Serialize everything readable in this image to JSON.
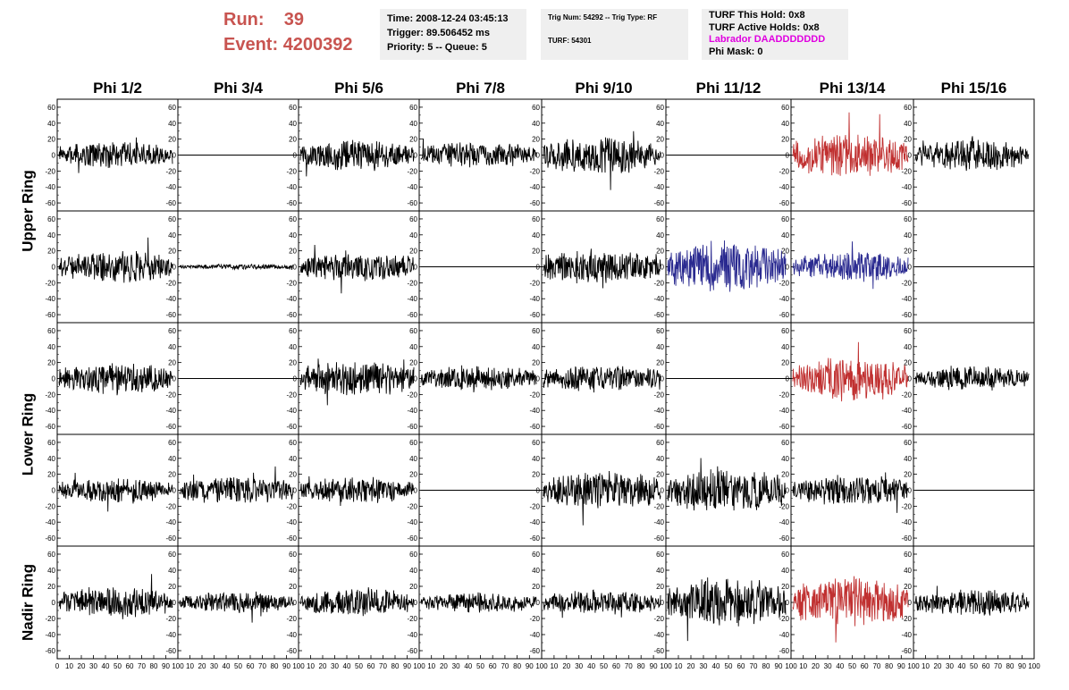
{
  "header": {
    "run_label": "Run:",
    "run_value": "39",
    "event_label": "Event:",
    "event_value": "4200392",
    "time": "Time: 2008-12-24 03:45:13",
    "trigger": "Trigger: 89.506452 ms",
    "priority": "Priority: 5 -- Queue: 5",
    "trig_num": "Trig Num: 54292 -- Trig Type: RF",
    "turf": "TURF: 54301",
    "turf_hold": "TURF This Hold: 0x8",
    "turf_active": "TURF Active Holds: 0x8",
    "labrador": "Labrador DAADDDDDDD",
    "phi_mask": "Phi Mask: 0"
  },
  "colors": {
    "run_text": "#c85450",
    "labrador_text": "#e000e0",
    "trace_default": "#000000",
    "trace_red": "#c03030",
    "trace_blue": "#2a2a90",
    "info_bg": "#efefef"
  },
  "phi_labels": [
    "Phi 1/2",
    "Phi 3/4",
    "Phi 5/6",
    "Phi 7/8",
    "Phi 9/10",
    "Phi 11/12",
    "Phi 13/14",
    "Phi 15/16"
  ],
  "ring_labels": [
    "Upper Ring",
    "Lower Ring",
    "Nadir Ring"
  ],
  "axis": {
    "y_ticks": [
      -60,
      -40,
      -20,
      0,
      20,
      40,
      60
    ],
    "y_range": [
      -70,
      70
    ],
    "x_ticks": [
      0,
      10,
      20,
      30,
      40,
      50,
      60,
      70,
      80,
      90,
      100
    ],
    "x_range": [
      0,
      100
    ]
  },
  "chart_data": {
    "type": "line",
    "x_range": [
      0,
      100
    ],
    "y_range": [
      -70,
      70
    ],
    "rows": [
      {
        "row": 1,
        "channels": [
          {
            "col": 1,
            "amplitude": 15,
            "color": "trace_default"
          },
          {
            "col": 2,
            "amplitude": 0,
            "color": "trace_default"
          },
          {
            "col": 3,
            "amplitude": 18,
            "color": "trace_default"
          },
          {
            "col": 4,
            "amplitude": 15,
            "color": "trace_default"
          },
          {
            "col": 5,
            "amplitude": 22,
            "color": "trace_default"
          },
          {
            "col": 6,
            "amplitude": 0,
            "color": "trace_default"
          },
          {
            "col": 7,
            "amplitude": 25,
            "color": "trace_red"
          },
          {
            "col": 8,
            "amplitude": 18,
            "color": "trace_default"
          }
        ]
      },
      {
        "row": 2,
        "channels": [
          {
            "col": 1,
            "amplitude": 18,
            "color": "trace_default"
          },
          {
            "col": 2,
            "amplitude": 3,
            "color": "trace_default"
          },
          {
            "col": 3,
            "amplitude": 18,
            "color": "trace_default"
          },
          {
            "col": 4,
            "amplitude": 0,
            "color": "trace_default"
          },
          {
            "col": 5,
            "amplitude": 20,
            "color": "trace_default"
          },
          {
            "col": 6,
            "amplitude": 30,
            "color": "trace_blue"
          },
          {
            "col": 7,
            "amplitude": 17,
            "color": "trace_blue"
          },
          {
            "col": 8,
            "amplitude": 0,
            "color": "trace_default"
          }
        ]
      },
      {
        "row": 3,
        "channels": [
          {
            "col": 1,
            "amplitude": 18,
            "color": "trace_default"
          },
          {
            "col": 2,
            "amplitude": 0,
            "color": "trace_default"
          },
          {
            "col": 3,
            "amplitude": 20,
            "color": "trace_default"
          },
          {
            "col": 4,
            "amplitude": 15,
            "color": "trace_default"
          },
          {
            "col": 5,
            "amplitude": 16,
            "color": "trace_default"
          },
          {
            "col": 6,
            "amplitude": 0,
            "color": "trace_default"
          },
          {
            "col": 7,
            "amplitude": 25,
            "color": "trace_red"
          },
          {
            "col": 8,
            "amplitude": 14,
            "color": "trace_default"
          }
        ]
      },
      {
        "row": 4,
        "channels": [
          {
            "col": 1,
            "amplitude": 14,
            "color": "trace_default"
          },
          {
            "col": 2,
            "amplitude": 16,
            "color": "trace_default"
          },
          {
            "col": 3,
            "amplitude": 15,
            "color": "trace_default"
          },
          {
            "col": 4,
            "amplitude": 0,
            "color": "trace_default"
          },
          {
            "col": 5,
            "amplitude": 22,
            "color": "trace_default"
          },
          {
            "col": 6,
            "amplitude": 26,
            "color": "trace_default"
          },
          {
            "col": 7,
            "amplitude": 18,
            "color": "trace_default"
          },
          {
            "col": 8,
            "amplitude": 0,
            "color": "trace_default"
          }
        ]
      },
      {
        "row": 5,
        "channels": [
          {
            "col": 1,
            "amplitude": 18,
            "color": "trace_default"
          },
          {
            "col": 2,
            "amplitude": 12,
            "color": "trace_default"
          },
          {
            "col": 3,
            "amplitude": 16,
            "color": "trace_default"
          },
          {
            "col": 4,
            "amplitude": 12,
            "color": "trace_default"
          },
          {
            "col": 5,
            "amplitude": 14,
            "color": "trace_default"
          },
          {
            "col": 6,
            "amplitude": 28,
            "color": "trace_default"
          },
          {
            "col": 7,
            "amplitude": 28,
            "color": "trace_red"
          },
          {
            "col": 8,
            "amplitude": 15,
            "color": "trace_default"
          }
        ]
      }
    ]
  }
}
